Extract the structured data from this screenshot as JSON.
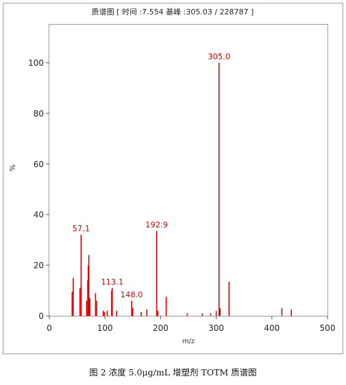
{
  "chart_data": {
    "type": "bar",
    "title": "质谱图 [ 时间 :7.554 基峰 :305.03 / 228787 ]",
    "xlabel": "m/z",
    "ylabel": "%",
    "xlim": [
      0,
      500
    ],
    "ylim": [
      0,
      115
    ],
    "xticks": [
      0,
      100,
      200,
      300,
      400,
      500
    ],
    "yticks": [
      0,
      20,
      40,
      60,
      80,
      100
    ],
    "grid": false,
    "peaks": [
      {
        "mz": 41,
        "intensity": 9.5
      },
      {
        "mz": 43,
        "intensity": 15
      },
      {
        "mz": 55,
        "intensity": 11
      },
      {
        "mz": 57.1,
        "intensity": 32,
        "label": "57.1"
      },
      {
        "mz": 67,
        "intensity": 6
      },
      {
        "mz": 69,
        "intensity": 14
      },
      {
        "mz": 70,
        "intensity": 20
      },
      {
        "mz": 71,
        "intensity": 24
      },
      {
        "mz": 73,
        "intensity": 7
      },
      {
        "mz": 83,
        "intensity": 9
      },
      {
        "mz": 85,
        "intensity": 6
      },
      {
        "mz": 97,
        "intensity": 2
      },
      {
        "mz": 99,
        "intensity": 1.5
      },
      {
        "mz": 104,
        "intensity": 2
      },
      {
        "mz": 112,
        "intensity": 10
      },
      {
        "mz": 113.1,
        "intensity": 11,
        "label": "113.1"
      },
      {
        "mz": 121,
        "intensity": 2
      },
      {
        "mz": 148,
        "intensity": 6,
        "label": "148.0"
      },
      {
        "mz": 150,
        "intensity": 3
      },
      {
        "mz": 165,
        "intensity": 1.5
      },
      {
        "mz": 175,
        "intensity": 2.5
      },
      {
        "mz": 192.9,
        "intensity": 33.5,
        "label": "192.9"
      },
      {
        "mz": 195,
        "intensity": 2
      },
      {
        "mz": 210,
        "intensity": 7.5
      },
      {
        "mz": 248,
        "intensity": 1
      },
      {
        "mz": 275,
        "intensity": 1
      },
      {
        "mz": 290,
        "intensity": 1
      },
      {
        "mz": 300,
        "intensity": 2
      },
      {
        "mz": 305.0,
        "intensity": 100,
        "label": "305.0"
      },
      {
        "mz": 307,
        "intensity": 3
      },
      {
        "mz": 323,
        "intensity": 13.5
      },
      {
        "mz": 418,
        "intensity": 3
      },
      {
        "mz": 435,
        "intensity": 2.5
      }
    ],
    "color": "#e00000"
  },
  "figure": {
    "caption": "图 2  浓度 5.0μg/mL  增塑剂 TOTM 质谱图"
  }
}
